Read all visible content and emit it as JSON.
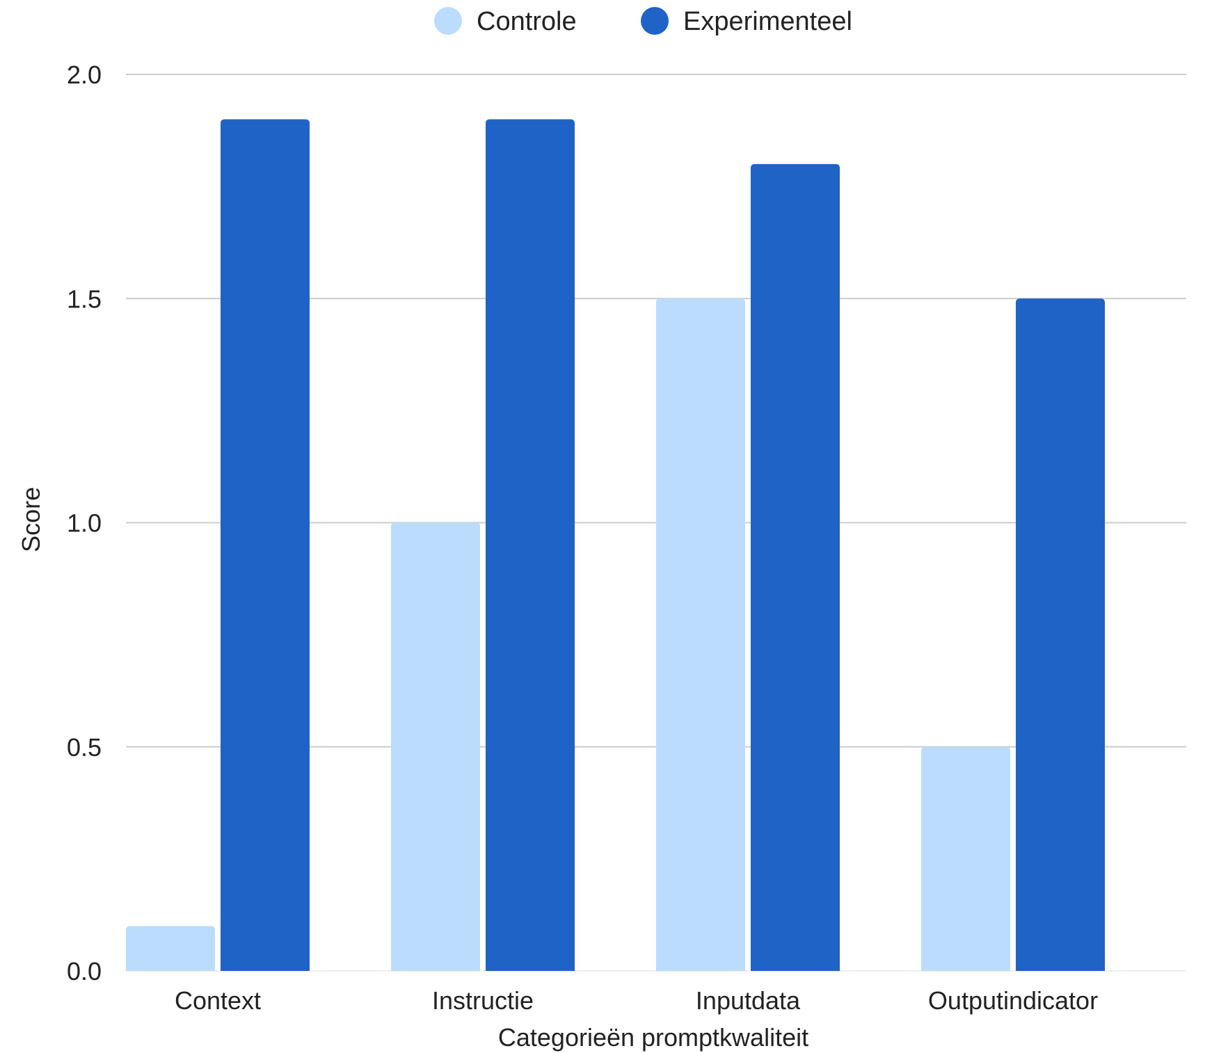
{
  "chart_data": {
    "type": "bar",
    "title": "",
    "xlabel": "Categorieën promptkwaliteit",
    "ylabel": "Score",
    "categories": [
      "Context",
      "Instructie",
      "Inputdata",
      "Outputindicator"
    ],
    "series": [
      {
        "name": "Controle",
        "color": "#bbdcfd",
        "values": [
          0.1,
          1.0,
          1.5,
          0.5
        ]
      },
      {
        "name": "Experimenteel",
        "color": "#2063c7",
        "values": [
          1.9,
          1.9,
          1.8,
          1.5
        ]
      }
    ],
    "ylim": [
      0,
      2.0
    ],
    "yticks": [
      "0.0",
      "0.5",
      "1.0",
      "1.5",
      "2.0"
    ],
    "ytick_values": [
      0,
      0.5,
      1.0,
      1.5,
      2.0
    ],
    "grid": true,
    "grid_color": "#cccccc",
    "legend_position": "top-center"
  }
}
